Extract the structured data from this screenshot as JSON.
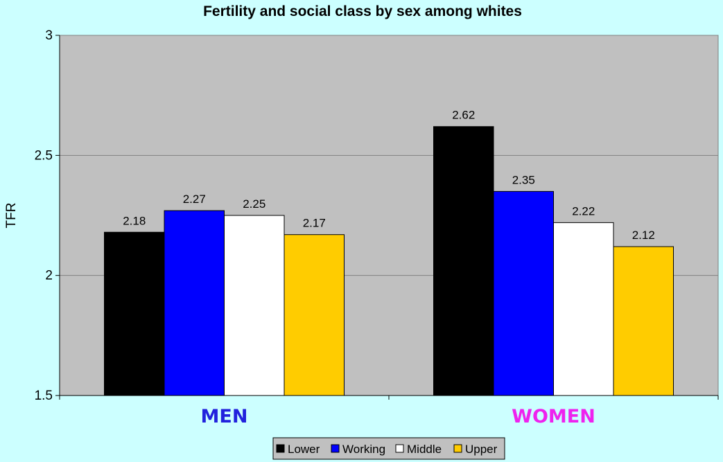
{
  "chart_data": {
    "type": "bar",
    "title": "Fertility and social class by sex among whites",
    "xlabel": "",
    "ylabel": "TFR",
    "ylim": [
      1.5,
      3
    ],
    "yticks": [
      1.5,
      2,
      2.5,
      3
    ],
    "ytick_labels": [
      "1.5",
      "2",
      "2.5",
      "3"
    ],
    "grid": true,
    "legend_position": "bottom-center",
    "categories": [
      "MEN",
      "WOMEN"
    ],
    "category_colors": [
      "#2222dd",
      "#ee22ee"
    ],
    "series": [
      {
        "name": "Lower",
        "color": "#000000",
        "values": [
          2.18,
          2.62
        ],
        "labels": [
          "2.18",
          "2.62"
        ]
      },
      {
        "name": "Working",
        "color": "#0000ff",
        "values": [
          2.27,
          2.35
        ],
        "labels": [
          "2.27",
          "2.35"
        ]
      },
      {
        "name": "Middle",
        "color": "#ffffff",
        "values": [
          2.25,
          2.22
        ],
        "labels": [
          "2.25",
          "2.22"
        ]
      },
      {
        "name": "Upper",
        "color": "#ffcc00",
        "values": [
          2.17,
          2.12
        ],
        "labels": [
          "2.17",
          "2.12"
        ]
      }
    ],
    "plot_background": "#c0c0c0",
    "page_background": "#ccffff"
  }
}
